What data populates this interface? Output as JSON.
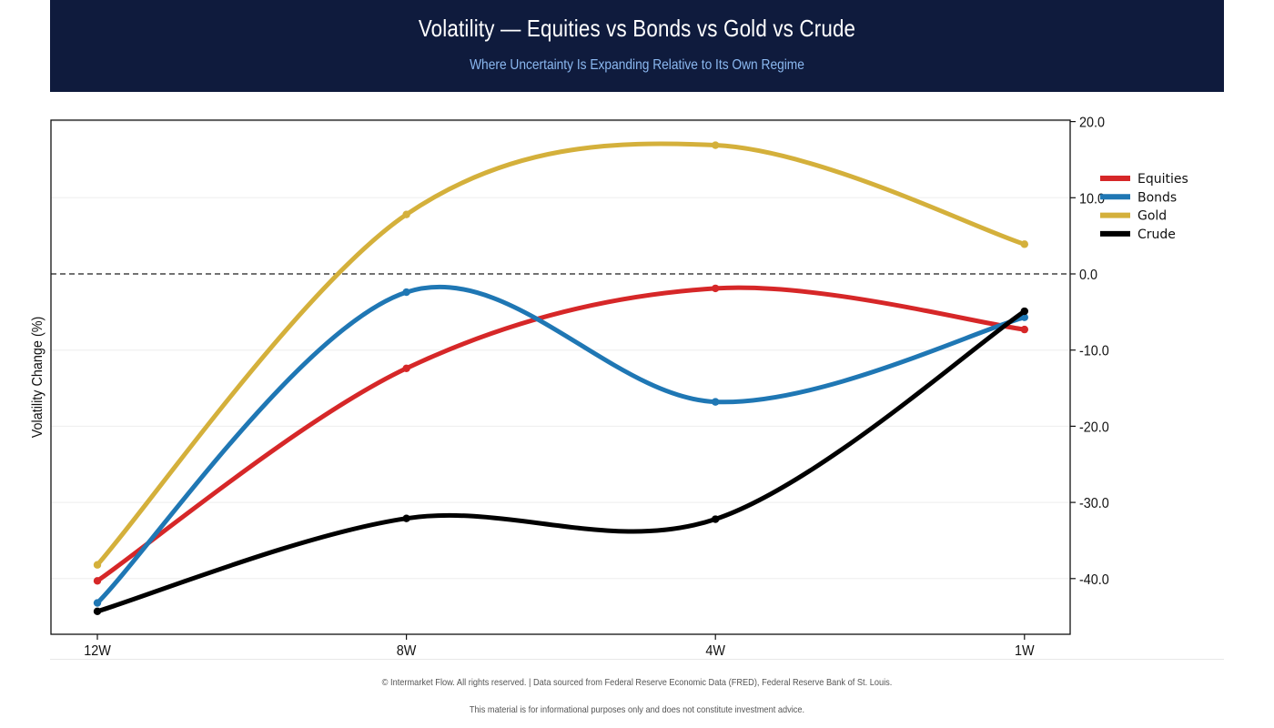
{
  "header": {
    "title": "Volatility — Equities vs Bonds vs Gold vs Crude",
    "subtitle": "Where Uncertainty Is Expanding Relative to Its Own Regime"
  },
  "chart_data": {
    "type": "line",
    "title": "Volatility — Equities vs Bonds vs Gold vs Crude",
    "subtitle": "Where Uncertainty Is Expanding Relative to Its Own Regime",
    "categories": [
      "12W",
      "8W",
      "4W",
      "1W"
    ],
    "ylabel": "Volatility Change (%)",
    "xlabel": "",
    "ylim": [
      -47,
      20.5
    ],
    "yticks": [
      -40.0,
      -30.0,
      -20.0,
      -10.0,
      0.0,
      10.0,
      20.0
    ],
    "ytick_labels": [
      "-40.0",
      "-30.0",
      "-20.0",
      "-10.0",
      "0.0",
      "10.0",
      "20.0"
    ],
    "y_axis_side": "right",
    "grid": "horizontal",
    "zero_line": "dashed",
    "legend_position": "top-right",
    "series": [
      {
        "name": "Equities",
        "color": "#d62728",
        "values": [
          -40.3,
          -12.4,
          -1.9,
          -7.3
        ]
      },
      {
        "name": "Bonds",
        "color": "#1f77b4",
        "values": [
          -43.2,
          -2.4,
          -16.8,
          -5.7
        ]
      },
      {
        "name": "Gold",
        "color": "#d4b03b",
        "values": [
          -38.2,
          7.8,
          16.9,
          3.9
        ]
      },
      {
        "name": "Crude",
        "color": "#000000",
        "values": [
          -44.3,
          -32.1,
          -32.2,
          -4.9
        ]
      }
    ]
  },
  "footer": {
    "copyright": "© Intermarket Flow. All rights reserved.  |  Data sourced from Federal Reserve Economic Data (FRED), Federal Reserve Bank of St. Louis.",
    "disclaimer": "This material is for informational purposes only and does not constitute investment advice."
  }
}
